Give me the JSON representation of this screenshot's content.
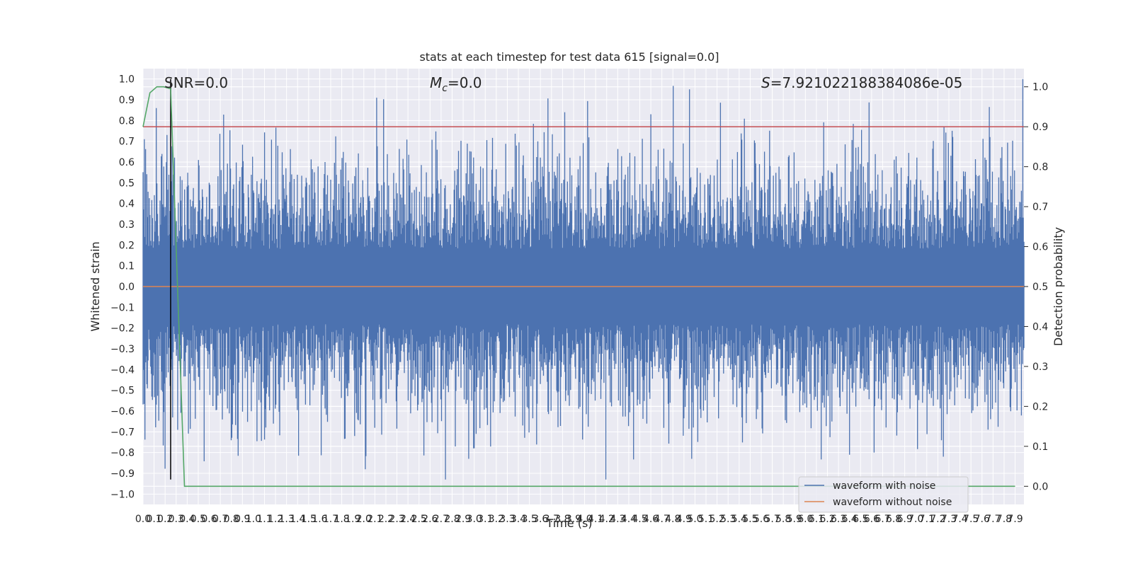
{
  "chart_data": {
    "type": "line",
    "title": "stats at each timestep for test data 615 [signal=0.0]",
    "xlabel": "Time (s)",
    "ylabel": "Whitened strain",
    "y2label": "Detection probability",
    "xlim": [
      0.0,
      7.98
    ],
    "ylim": [
      -1.05,
      1.05
    ],
    "y2lim": [
      -0.0455,
      1.0455
    ],
    "x_ticks": [
      0.0,
      0.1,
      0.2,
      0.3,
      0.4,
      0.5,
      0.6,
      0.7,
      0.8,
      0.9,
      1.0,
      1.1,
      1.2,
      1.3,
      1.4,
      1.5,
      1.6,
      1.7,
      1.8,
      1.9,
      2.0,
      2.1,
      2.2,
      2.3,
      2.4,
      2.5,
      2.6,
      2.7,
      2.8,
      2.9,
      3.0,
      3.1,
      3.2,
      3.3,
      3.4,
      3.5,
      3.6,
      3.7,
      3.8,
      3.9,
      4.0,
      4.1,
      4.2,
      4.3,
      4.4,
      4.5,
      4.6,
      4.7,
      4.8,
      4.9,
      5.0,
      5.1,
      5.2,
      5.3,
      5.4,
      5.5,
      5.6,
      5.7,
      5.8,
      5.9,
      6.0,
      6.1,
      6.2,
      6.3,
      6.4,
      6.5,
      6.6,
      6.7,
      6.8,
      6.9,
      7.0,
      7.1,
      7.2,
      7.3,
      7.4,
      7.5,
      7.6,
      7.7,
      7.8,
      7.9
    ],
    "y_ticks": [
      -1.0,
      -0.9,
      -0.8,
      -0.7,
      -0.6,
      -0.5,
      -0.4,
      -0.3,
      -0.2,
      -0.1,
      0.0,
      0.1,
      0.2,
      0.3,
      0.4,
      0.5,
      0.6,
      0.7,
      0.8,
      0.9,
      1.0
    ],
    "y2_ticks": [
      0.0,
      0.1,
      0.2,
      0.3,
      0.4,
      0.5,
      0.6,
      0.7,
      0.8,
      0.9,
      1.0
    ],
    "annotations": {
      "snr": "SNR=0.0",
      "mc_symbol": "M",
      "mc_subscript": "c",
      "mc_value": "=0.0",
      "s_symbol": "S",
      "s_value": "=7.921022188384086e-05"
    },
    "series": [
      {
        "name": "waveform with noise",
        "axis": "left",
        "color": "#4c72b0",
        "noise_envelope": {
          "typical_amplitude": 0.33,
          "max": 1.0,
          "min": -0.93
        },
        "notable_peaks": [
          {
            "x": 0.12,
            "y": 0.86
          },
          {
            "x": 3.82,
            "y": 0.84
          },
          {
            "x": 4.95,
            "y": 0.95
          },
          {
            "x": 4.6,
            "y": 0.83
          },
          {
            "x": 2.74,
            "y": -0.93
          },
          {
            "x": 2.95,
            "y": -0.83
          },
          {
            "x": 4.97,
            "y": -0.83
          },
          {
            "x": 7.25,
            "y": -0.82
          },
          {
            "x": 7.97,
            "y": 1.0
          }
        ]
      },
      {
        "name": "waveform without noise",
        "axis": "left",
        "color": "#dd8452",
        "x": [
          0.0,
          7.98
        ],
        "y": [
          0.0,
          0.0
        ]
      },
      {
        "axis": "right",
        "color": "#55a868",
        "x": [
          0.0,
          0.0625,
          0.125,
          0.1875,
          0.25,
          0.375,
          7.9
        ],
        "y": [
          0.9,
          0.985,
          1.0,
          1.0,
          0.995,
          0.0,
          0.0
        ]
      },
      {
        "axis": "right",
        "color": "#c44e52",
        "x": [
          0.0,
          7.98
        ],
        "y": [
          0.9,
          0.9
        ]
      },
      {
        "axis": "left",
        "color": "#000000",
        "x": [
          0.25,
          0.25
        ],
        "y": [
          1.0,
          -0.93
        ]
      }
    ],
    "legend": {
      "placement": "lower-right",
      "entries": [
        "waveform with noise",
        "waveform without noise"
      ]
    },
    "grid": true
  },
  "colors": {
    "axes_background": "#eaeaf2",
    "grid": "#ffffff",
    "text": "#262626"
  }
}
